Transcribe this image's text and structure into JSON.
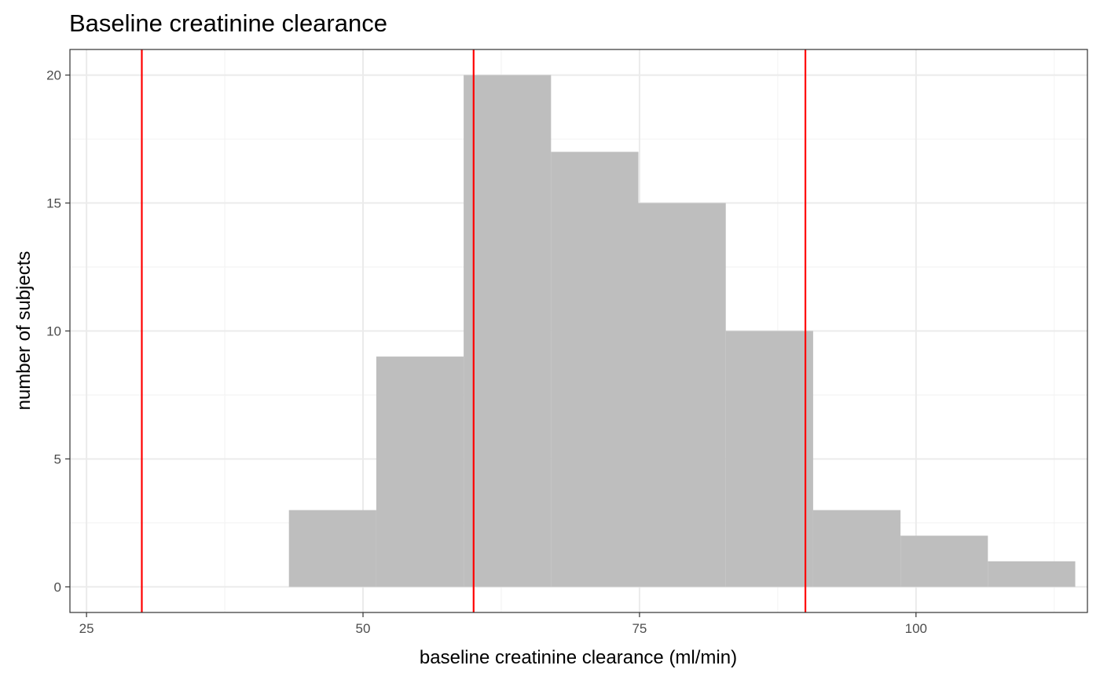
{
  "chart_data": {
    "type": "bar",
    "title": "Baseline creatinine clearance",
    "xlabel": "baseline creatinine clearance (ml/min)",
    "ylabel": "number of subjects",
    "xlim": [
      23.5,
      115.5
    ],
    "ylim": [
      -1,
      21
    ],
    "x_ticks": [
      25,
      50,
      75,
      100
    ],
    "y_ticks": [
      0,
      5,
      10,
      15,
      20
    ],
    "grid": true,
    "bar_color": "#bebebe",
    "bins": [
      {
        "x0": 43.3,
        "x1": 51.2,
        "count": 3
      },
      {
        "x0": 51.2,
        "x1": 59.1,
        "count": 9
      },
      {
        "x0": 59.1,
        "x1": 67.0,
        "count": 20
      },
      {
        "x0": 67.0,
        "x1": 74.9,
        "count": 17
      },
      {
        "x0": 74.9,
        "x1": 82.8,
        "count": 15
      },
      {
        "x0": 82.8,
        "x1": 90.7,
        "count": 10
      },
      {
        "x0": 90.7,
        "x1": 98.6,
        "count": 3
      },
      {
        "x0": 98.6,
        "x1": 106.5,
        "count": 2
      },
      {
        "x0": 106.5,
        "x1": 114.4,
        "count": 1
      }
    ],
    "reference_lines": {
      "color": "#ff0000",
      "x": [
        30,
        60,
        90
      ]
    }
  }
}
